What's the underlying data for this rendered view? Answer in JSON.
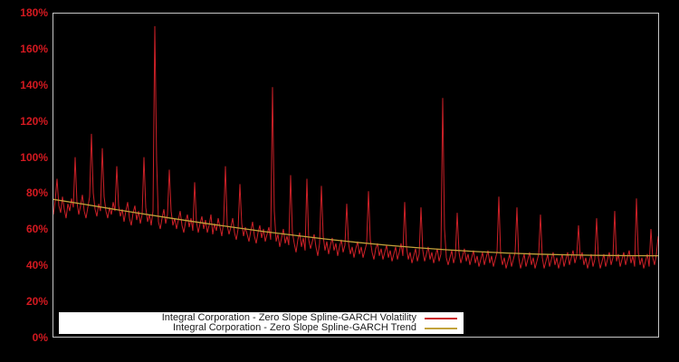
{
  "window": {
    "background_color": "#000000",
    "plot_border_color": "#c6c6c6",
    "y_axis_label_color": "#d41920"
  },
  "legend": {
    "background_color": "#ffffff",
    "text_color": "#1a1a1a"
  },
  "chart_data": {
    "type": "line",
    "title": "",
    "xlabel": "",
    "ylabel": "",
    "x_tick_labels_visible": false,
    "ylim": [
      0,
      180
    ],
    "y_tick_labels": [
      "0%",
      "20%",
      "40%",
      "60%",
      "80%",
      "100%",
      "120%",
      "140%",
      "160%",
      "180%"
    ],
    "y_tick_values": [
      0,
      20,
      40,
      60,
      80,
      100,
      120,
      140,
      160,
      180
    ],
    "grid": false,
    "legend_position": "bottom-left-inside",
    "series": [
      {
        "name": "Integral Corporation - Zero Slope Spline-GARCH Volatility",
        "color": "#cc2027",
        "unit": "percent",
        "values": [
          68,
          76,
          88,
          73,
          69,
          78,
          71,
          66,
          74,
          70,
          77,
          72,
          100,
          75,
          68,
          73,
          79,
          70,
          66,
          72,
          78,
          113,
          80,
          71,
          67,
          74,
          70,
          105,
          78,
          70,
          66,
          72,
          68,
          75,
          70,
          95,
          73,
          67,
          71,
          64,
          70,
          75,
          66,
          62,
          69,
          73,
          65,
          70,
          63,
          68,
          100,
          72,
          64,
          68,
          62,
          70,
          173,
          98,
          64,
          60,
          66,
          71,
          63,
          68,
          93,
          70,
          62,
          66,
          60,
          65,
          70,
          62,
          58,
          64,
          68,
          61,
          66,
          59,
          86,
          64,
          58,
          63,
          67,
          60,
          65,
          58,
          62,
          68,
          57,
          63,
          59,
          66,
          61,
          56,
          64,
          95,
          62,
          57,
          61,
          66,
          58,
          54,
          60,
          85,
          63,
          56,
          61,
          57,
          53,
          59,
          64,
          56,
          52,
          58,
          62,
          55,
          60,
          53,
          57,
          61,
          54,
          139,
          70,
          53,
          57,
          50,
          55,
          60,
          52,
          56,
          51,
          90,
          58,
          52,
          47,
          54,
          58,
          50,
          55,
          48,
          88,
          54,
          49,
          53,
          57,
          50,
          45,
          52,
          84,
          56,
          48,
          53,
          46,
          51,
          55,
          48,
          52,
          45,
          50,
          54,
          47,
          51,
          74,
          52,
          46,
          50,
          44,
          49,
          53,
          46,
          50,
          44,
          48,
          52,
          81,
          54,
          47,
          43,
          49,
          52,
          45,
          49,
          43,
          47,
          51,
          44,
          48,
          42,
          46,
          50,
          43,
          47,
          52,
          45,
          75,
          50,
          43,
          47,
          41,
          45,
          49,
          42,
          46,
          72,
          48,
          42,
          46,
          50,
          43,
          47,
          41,
          45,
          49,
          42,
          46,
          133,
          60,
          44,
          40,
          44,
          48,
          41,
          45,
          69,
          47,
          41,
          45,
          49,
          42,
          46,
          40,
          44,
          48,
          41,
          45,
          39,
          43,
          47,
          40,
          44,
          48,
          41,
          45,
          39,
          43,
          47,
          78,
          46,
          40,
          44,
          38,
          42,
          46,
          39,
          43,
          47,
          72,
          44,
          38,
          42,
          46,
          39,
          43,
          47,
          40,
          44,
          38,
          42,
          46,
          68,
          44,
          38,
          42,
          46,
          39,
          43,
          47,
          40,
          44,
          38,
          42,
          46,
          39,
          43,
          47,
          40,
          44,
          48,
          41,
          45,
          62,
          43,
          47,
          40,
          44,
          38,
          42,
          46,
          39,
          43,
          66,
          44,
          38,
          42,
          46,
          39,
          43,
          47,
          40,
          44,
          70,
          42,
          46,
          39,
          43,
          47,
          40,
          44,
          48,
          41,
          45,
          39,
          77,
          47,
          40,
          44,
          38,
          42,
          46,
          39,
          60,
          44,
          40,
          46,
          56
        ]
      },
      {
        "name": "Integral Corporation - Zero Slope Spline-GARCH Trend",
        "color": "#c2a23a",
        "unit": "percent",
        "points_frac_value": [
          [
            0.0,
            76.5
          ],
          [
            0.05,
            73.8
          ],
          [
            0.1,
            71.0
          ],
          [
            0.15,
            68.3
          ],
          [
            0.2,
            65.7
          ],
          [
            0.25,
            63.2
          ],
          [
            0.3,
            60.8
          ],
          [
            0.35,
            58.5
          ],
          [
            0.4,
            56.4
          ],
          [
            0.45,
            54.4
          ],
          [
            0.5,
            52.6
          ],
          [
            0.55,
            51.0
          ],
          [
            0.6,
            49.6
          ],
          [
            0.65,
            48.4
          ],
          [
            0.7,
            47.4
          ],
          [
            0.75,
            46.6
          ],
          [
            0.8,
            46.0
          ],
          [
            0.85,
            45.6
          ],
          [
            0.9,
            45.3
          ],
          [
            0.95,
            45.15
          ],
          [
            1.0,
            45.1
          ]
        ]
      }
    ]
  }
}
